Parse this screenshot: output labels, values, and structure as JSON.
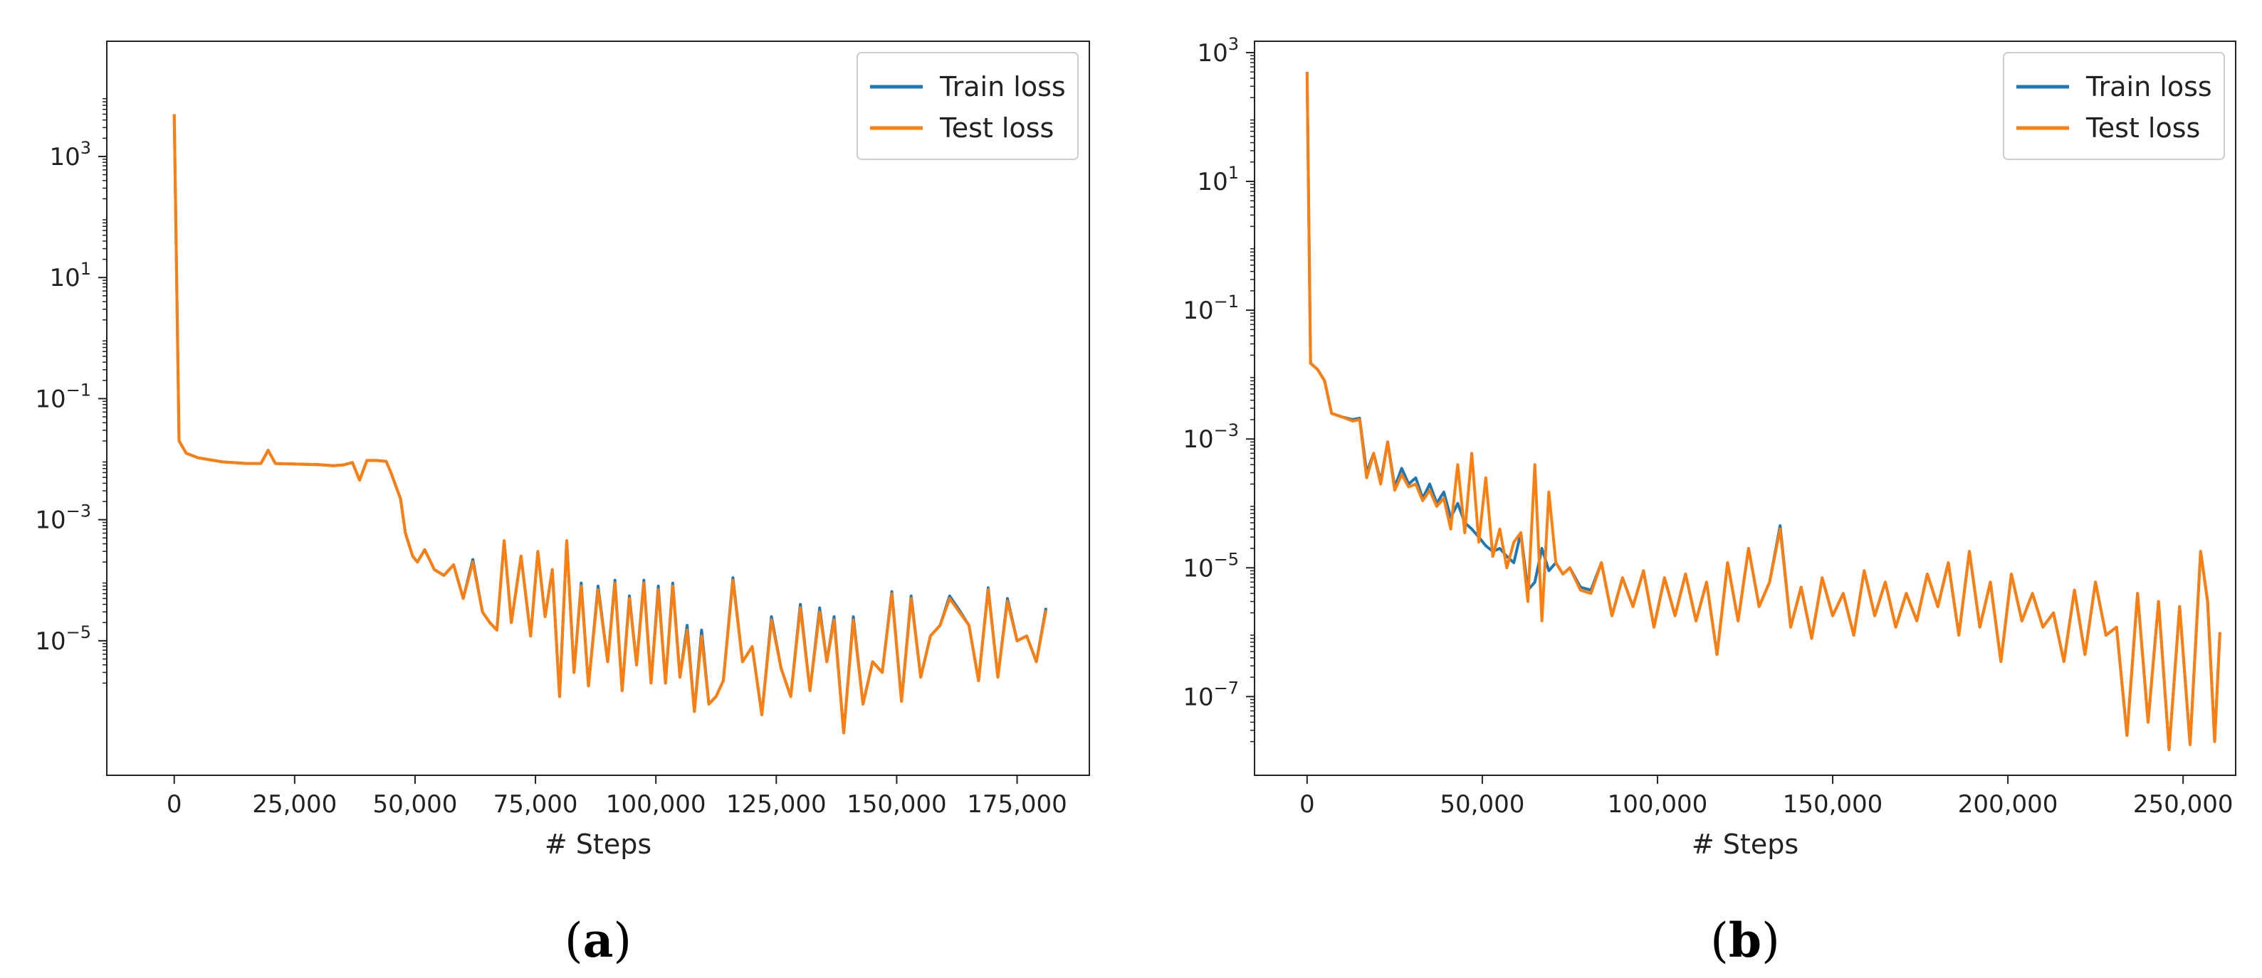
{
  "colors": {
    "train": "#1f77b4",
    "test": "#ff7f0e",
    "axis": "#222222"
  },
  "chart_data": [
    {
      "type": "line",
      "panel_label": "(a)",
      "xlabel": "# Steps",
      "ylabel": "",
      "yscale": "log",
      "xlim": [
        -14000,
        190000
      ],
      "ylim": [
        6e-08,
        80000
      ],
      "xticks": [
        0,
        25000,
        50000,
        75000,
        100000,
        125000,
        150000,
        175000
      ],
      "xtick_labels": [
        "0",
        "25,000",
        "50,000",
        "75,000",
        "100,000",
        "125,000",
        "150,000",
        "175,000"
      ],
      "yticks": [
        -5,
        -3,
        -1,
        1,
        3
      ],
      "legend": {
        "position": "top-right",
        "entries": [
          "Train loss",
          "Test loss"
        ]
      },
      "grid": false,
      "series": [
        {
          "name": "Train loss",
          "x": [
            0,
            1000,
            2500,
            5000,
            10000,
            15000,
            18000,
            19500,
            21000,
            25000,
            30000,
            33000,
            35000,
            37000,
            38500,
            40000,
            42000,
            44000,
            45000,
            47000,
            48000,
            49500,
            50500,
            52000,
            54000,
            56000,
            58000,
            60000,
            62000,
            64000,
            65500,
            67000,
            68500,
            70000,
            72000,
            74000,
            75500,
            77000,
            78500,
            80000,
            81500,
            83000,
            84500,
            86000,
            88000,
            90000,
            91500,
            93000,
            94500,
            96000,
            97500,
            99000,
            100500,
            102000,
            103500,
            105000,
            106500,
            108000,
            109500,
            111000,
            112500,
            114000,
            116000,
            118000,
            120000,
            122000,
            124000,
            126000,
            128000,
            130000,
            132000,
            134000,
            135500,
            137000,
            139000,
            141000,
            143000,
            145000,
            147000,
            149000,
            151000,
            153000,
            155000,
            157000,
            159000,
            161000,
            163000,
            165000,
            167000,
            169000,
            171000,
            173000,
            175000,
            177000,
            179000,
            181000
          ],
          "y": [
            5000,
            0.02,
            0.0125,
            0.0105,
            0.009,
            0.0085,
            0.0085,
            0.014,
            0.0085,
            0.0083,
            0.0081,
            0.0078,
            0.008,
            0.0088,
            0.0045,
            0.0095,
            0.0095,
            0.0092,
            0.006,
            0.0022,
            0.0006,
            0.00025,
            0.0002,
            0.00032,
            0.00015,
            0.00012,
            0.00018,
            5e-05,
            0.00022,
            3e-05,
            2e-05,
            1.5e-05,
            0.00045,
            2e-05,
            0.00025,
            1.2e-05,
            0.0003,
            2.5e-05,
            0.00015,
            1.2e-06,
            0.00045,
            3e-06,
            9e-05,
            1.8e-06,
            8e-05,
            4.5e-06,
            0.0001,
            1.5e-06,
            5.5e-05,
            4e-06,
            0.0001,
            2e-06,
            8e-05,
            2e-06,
            9e-05,
            2.5e-06,
            1.8e-05,
            6.8e-07,
            1.5e-05,
            9e-07,
            1.2e-06,
            2.2e-06,
            0.00011,
            4.5e-06,
            8e-06,
            6e-07,
            2.5e-05,
            3.5e-06,
            1.2e-06,
            4e-05,
            1.5e-06,
            3.5e-05,
            4.5e-06,
            2.5e-05,
            3e-07,
            2.5e-05,
            9e-07,
            4.5e-06,
            3e-06,
            6.5e-05,
            1e-06,
            5.5e-05,
            2.5e-06,
            1.2e-05,
            1.8e-05,
            5.5e-05,
            3.2e-05,
            1.8e-05,
            2.2e-06,
            7.5e-05,
            2.5e-06,
            5e-05,
            1e-05,
            1.2e-05,
            4.5e-06,
            3.5e-05
          ],
          "note": "Train loss overlaps Test loss almost exactly; Test series rendered on top"
        },
        {
          "name": "Test loss",
          "x": [
            0,
            1000,
            2500,
            5000,
            10000,
            15000,
            18000,
            19500,
            21000,
            25000,
            30000,
            33000,
            35000,
            37000,
            38500,
            40000,
            42000,
            44000,
            45000,
            47000,
            48000,
            49500,
            50500,
            52000,
            54000,
            56000,
            58000,
            60000,
            62000,
            64000,
            65500,
            67000,
            68500,
            70000,
            72000,
            74000,
            75500,
            77000,
            78500,
            80000,
            81500,
            83000,
            84500,
            86000,
            88000,
            90000,
            91500,
            93000,
            94500,
            96000,
            97500,
            99000,
            100500,
            102000,
            103500,
            105000,
            106500,
            108000,
            109500,
            111000,
            112500,
            114000,
            116000,
            118000,
            120000,
            122000,
            124000,
            126000,
            128000,
            130000,
            132000,
            134000,
            135500,
            137000,
            139000,
            141000,
            143000,
            145000,
            147000,
            149000,
            151000,
            153000,
            155000,
            157000,
            159000,
            161000,
            163000,
            165000,
            167000,
            169000,
            171000,
            173000,
            175000,
            177000,
            179000,
            181000
          ],
          "y": [
            5000,
            0.02,
            0.0125,
            0.0105,
            0.009,
            0.0085,
            0.0085,
            0.014,
            0.0085,
            0.0083,
            0.0081,
            0.0078,
            0.008,
            0.0088,
            0.0045,
            0.0095,
            0.0095,
            0.0092,
            0.006,
            0.0022,
            0.0006,
            0.00025,
            0.0002,
            0.00032,
            0.00015,
            0.00012,
            0.00018,
            5e-05,
            0.0002,
            3e-05,
            2e-05,
            1.5e-05,
            0.00045,
            2e-05,
            0.00025,
            1.2e-05,
            0.0003,
            2.5e-05,
            0.00015,
            1.2e-06,
            0.00045,
            3e-06,
            8e-05,
            1.8e-06,
            7e-05,
            4.5e-06,
            9e-05,
            1.5e-06,
            5e-05,
            4e-06,
            9e-05,
            2e-06,
            7e-05,
            2e-06,
            8e-05,
            2.5e-06,
            1.5e-05,
            6.8e-07,
            1.2e-05,
            9e-07,
            1.2e-06,
            2.2e-06,
            0.0001,
            4.5e-06,
            8e-06,
            6e-07,
            2.2e-05,
            3.5e-06,
            1.2e-06,
            3.5e-05,
            1.5e-06,
            3e-05,
            4.5e-06,
            2.2e-05,
            3e-07,
            2.2e-05,
            9e-07,
            4.5e-06,
            3e-06,
            6e-05,
            1e-06,
            5e-05,
            2.5e-06,
            1.2e-05,
            1.8e-05,
            5e-05,
            3e-05,
            1.8e-05,
            2.2e-06,
            7e-05,
            2.5e-06,
            4.5e-05,
            1e-05,
            1.2e-05,
            4.5e-06,
            3.2e-05
          ]
        }
      ]
    },
    {
      "type": "line",
      "panel_label": "(b)",
      "xlabel": "# Steps",
      "ylabel": "",
      "yscale": "log",
      "xlim": [
        -15000,
        265000
      ],
      "ylim": [
        6e-09,
        1500
      ],
      "xticks": [
        0,
        50000,
        100000,
        150000,
        200000,
        250000
      ],
      "xtick_labels": [
        "0",
        "50,000",
        "100,000",
        "150,000",
        "200,000",
        "250,000"
      ],
      "yticks": [
        -7,
        -5,
        -3,
        -1,
        1,
        3
      ],
      "legend": {
        "position": "top-right",
        "entries": [
          "Train loss",
          "Test loss"
        ]
      },
      "grid": false,
      "series": [
        {
          "name": "Train loss",
          "x": [
            0,
            1000,
            3000,
            5000,
            7000,
            10000,
            13000,
            15000,
            17000,
            19000,
            21000,
            23000,
            25000,
            27000,
            29000,
            31000,
            33000,
            35000,
            37000,
            39000,
            41000,
            43000,
            45000,
            47000,
            49000,
            51000,
            53000,
            55000,
            57000,
            59000,
            61000,
            63000,
            65000,
            67000,
            69000,
            71000,
            73000,
            75000,
            78000,
            81000,
            84000,
            87000,
            90000,
            93000,
            96000,
            99000,
            102000,
            105000,
            108000,
            111000,
            114000,
            117000,
            120000,
            123000,
            126000,
            129000,
            132000,
            135000,
            138000,
            141000,
            144000,
            147000,
            150000,
            153000,
            156000,
            159000,
            162000,
            165000,
            168000,
            171000,
            174000,
            177000,
            180000,
            183000,
            186000,
            189000,
            192000,
            195000,
            198000,
            201000,
            204000,
            207000,
            210000,
            213000,
            216000,
            219000,
            222000,
            225000,
            228000,
            231000,
            234000,
            237000,
            240000,
            243000,
            246000,
            249000,
            252000,
            255000,
            257000,
            259000,
            260500
          ],
          "y": [
            500,
            0.015,
            0.012,
            0.008,
            0.0025,
            0.0022,
            0.002,
            0.0021,
            0.0003,
            0.0006,
            0.00022,
            0.0009,
            0.00018,
            0.00035,
            0.0002,
            0.00025,
            0.00012,
            0.0002,
            0.0001,
            0.00015,
            6e-05,
            0.0001,
            5e-05,
            4e-05,
            3e-05,
            2.2e-05,
            1.8e-05,
            2e-05,
            1.5e-05,
            1.2e-05,
            3.5e-05,
            4.5e-06,
            6e-06,
            2e-05,
            9e-06,
            1.2e-05,
            8e-06,
            1e-05,
            5e-06,
            4.5e-06,
            1.2e-05,
            1.8e-06,
            7e-06,
            2.5e-06,
            9e-06,
            1.2e-06,
            7e-06,
            1.8e-06,
            8e-06,
            1.5e-06,
            6e-06,
            4.5e-07,
            1.2e-05,
            1.5e-06,
            2e-05,
            2.5e-06,
            6e-06,
            4.5e-05,
            1.2e-06,
            5e-06,
            8e-07,
            7e-06,
            1.8e-06,
            4e-06,
            9e-07,
            9e-06,
            1.8e-06,
            6e-06,
            1.2e-06,
            4e-06,
            1.5e-06,
            8e-06,
            2.5e-06,
            1.2e-05,
            9e-07,
            1.8e-05,
            1.2e-06,
            6e-06,
            3.5e-07,
            8e-06,
            1.5e-06,
            4e-06,
            1.2e-06,
            2e-06,
            3.5e-07,
            4.5e-06,
            4.5e-07,
            6e-06,
            9e-07,
            1.2e-06,
            2.5e-08,
            4e-06,
            4e-08,
            3e-06,
            1.5e-08,
            2.5e-06,
            1.8e-08,
            1.8e-05,
            3e-06,
            2e-08,
            1e-06
          ]
        },
        {
          "name": "Test loss",
          "x": [
            0,
            1000,
            3000,
            5000,
            7000,
            10000,
            13000,
            15000,
            17000,
            19000,
            21000,
            23000,
            25000,
            27000,
            29000,
            31000,
            33000,
            35000,
            37000,
            39000,
            41000,
            43000,
            45000,
            47000,
            49000,
            51000,
            53000,
            55000,
            57000,
            59000,
            61000,
            63000,
            65000,
            67000,
            69000,
            71000,
            73000,
            75000,
            78000,
            81000,
            84000,
            87000,
            90000,
            93000,
            96000,
            99000,
            102000,
            105000,
            108000,
            111000,
            114000,
            117000,
            120000,
            123000,
            126000,
            129000,
            132000,
            135000,
            138000,
            141000,
            144000,
            147000,
            150000,
            153000,
            156000,
            159000,
            162000,
            165000,
            168000,
            171000,
            174000,
            177000,
            180000,
            183000,
            186000,
            189000,
            192000,
            195000,
            198000,
            201000,
            204000,
            207000,
            210000,
            213000,
            216000,
            219000,
            222000,
            225000,
            228000,
            231000,
            234000,
            237000,
            240000,
            243000,
            246000,
            249000,
            252000,
            255000,
            257000,
            259000,
            260500
          ],
          "y": [
            500,
            0.015,
            0.012,
            0.008,
            0.0025,
            0.0022,
            0.0019,
            0.002,
            0.00025,
            0.0006,
            0.0002,
            0.0009,
            0.00016,
            0.00028,
            0.00018,
            0.0002,
            0.00011,
            0.00016,
            9e-05,
            0.00012,
            4e-05,
            0.0004,
            3.5e-05,
            0.0006,
            2.5e-05,
            0.00025,
            1.5e-05,
            4e-05,
            1e-05,
            2.5e-05,
            3.5e-05,
            3e-06,
            0.0004,
            1.5e-06,
            0.00015,
            1.2e-05,
            8e-06,
            1e-05,
            4.5e-06,
            4e-06,
            1.2e-05,
            1.8e-06,
            7e-06,
            2.5e-06,
            9e-06,
            1.2e-06,
            7e-06,
            1.8e-06,
            8e-06,
            1.5e-06,
            6e-06,
            4.5e-07,
            1.2e-05,
            1.5e-06,
            2e-05,
            2.5e-06,
            6e-06,
            4e-05,
            1.2e-06,
            5e-06,
            8e-07,
            7e-06,
            1.8e-06,
            4e-06,
            9e-07,
            9e-06,
            1.8e-06,
            6e-06,
            1.2e-06,
            4e-06,
            1.5e-06,
            8e-06,
            2.5e-06,
            1.2e-05,
            9e-07,
            1.8e-05,
            1.2e-06,
            6e-06,
            3.5e-07,
            8e-06,
            1.5e-06,
            4e-06,
            1.2e-06,
            2e-06,
            3.5e-07,
            4.5e-06,
            4.5e-07,
            6e-06,
            9e-07,
            1.2e-06,
            2.5e-08,
            4e-06,
            4e-08,
            3e-06,
            1.5e-08,
            2.5e-06,
            1.8e-08,
            1.8e-05,
            3e-06,
            2e-08,
            1e-06
          ]
        }
      ]
    }
  ]
}
